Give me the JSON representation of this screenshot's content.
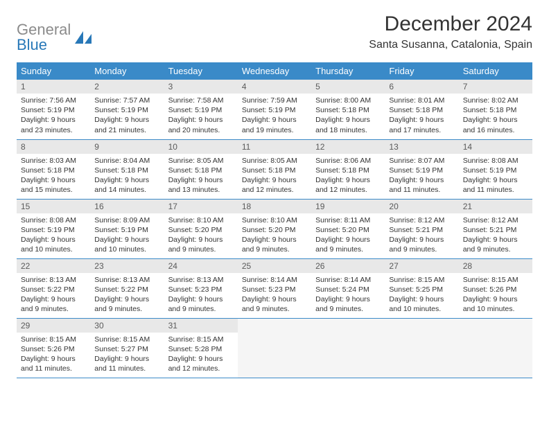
{
  "logo": {
    "text_gray": "General",
    "text_blue": "Blue",
    "shape_color": "#2878b8"
  },
  "title": "December 2024",
  "location": "Santa Susanna, Catalonia, Spain",
  "colors": {
    "header_bg": "#3a8ac8",
    "header_text": "#ffffff",
    "daynum_bg": "#e8e8e8",
    "daynum_text": "#5a5a5a",
    "body_text": "#333333",
    "rule": "#3a8ac8",
    "empty_bg": "#f5f5f5"
  },
  "weekdays": [
    "Sunday",
    "Monday",
    "Tuesday",
    "Wednesday",
    "Thursday",
    "Friday",
    "Saturday"
  ],
  "weeks": [
    [
      {
        "n": "1",
        "sr": "7:56 AM",
        "ss": "5:19 PM",
        "dl": "9 hours and 23 minutes."
      },
      {
        "n": "2",
        "sr": "7:57 AM",
        "ss": "5:19 PM",
        "dl": "9 hours and 21 minutes."
      },
      {
        "n": "3",
        "sr": "7:58 AM",
        "ss": "5:19 PM",
        "dl": "9 hours and 20 minutes."
      },
      {
        "n": "4",
        "sr": "7:59 AM",
        "ss": "5:19 PM",
        "dl": "9 hours and 19 minutes."
      },
      {
        "n": "5",
        "sr": "8:00 AM",
        "ss": "5:18 PM",
        "dl": "9 hours and 18 minutes."
      },
      {
        "n": "6",
        "sr": "8:01 AM",
        "ss": "5:18 PM",
        "dl": "9 hours and 17 minutes."
      },
      {
        "n": "7",
        "sr": "8:02 AM",
        "ss": "5:18 PM",
        "dl": "9 hours and 16 minutes."
      }
    ],
    [
      {
        "n": "8",
        "sr": "8:03 AM",
        "ss": "5:18 PM",
        "dl": "9 hours and 15 minutes."
      },
      {
        "n": "9",
        "sr": "8:04 AM",
        "ss": "5:18 PM",
        "dl": "9 hours and 14 minutes."
      },
      {
        "n": "10",
        "sr": "8:05 AM",
        "ss": "5:18 PM",
        "dl": "9 hours and 13 minutes."
      },
      {
        "n": "11",
        "sr": "8:05 AM",
        "ss": "5:18 PM",
        "dl": "9 hours and 12 minutes."
      },
      {
        "n": "12",
        "sr": "8:06 AM",
        "ss": "5:18 PM",
        "dl": "9 hours and 12 minutes."
      },
      {
        "n": "13",
        "sr": "8:07 AM",
        "ss": "5:19 PM",
        "dl": "9 hours and 11 minutes."
      },
      {
        "n": "14",
        "sr": "8:08 AM",
        "ss": "5:19 PM",
        "dl": "9 hours and 11 minutes."
      }
    ],
    [
      {
        "n": "15",
        "sr": "8:08 AM",
        "ss": "5:19 PM",
        "dl": "9 hours and 10 minutes."
      },
      {
        "n": "16",
        "sr": "8:09 AM",
        "ss": "5:19 PM",
        "dl": "9 hours and 10 minutes."
      },
      {
        "n": "17",
        "sr": "8:10 AM",
        "ss": "5:20 PM",
        "dl": "9 hours and 9 minutes."
      },
      {
        "n": "18",
        "sr": "8:10 AM",
        "ss": "5:20 PM",
        "dl": "9 hours and 9 minutes."
      },
      {
        "n": "19",
        "sr": "8:11 AM",
        "ss": "5:20 PM",
        "dl": "9 hours and 9 minutes."
      },
      {
        "n": "20",
        "sr": "8:12 AM",
        "ss": "5:21 PM",
        "dl": "9 hours and 9 minutes."
      },
      {
        "n": "21",
        "sr": "8:12 AM",
        "ss": "5:21 PM",
        "dl": "9 hours and 9 minutes."
      }
    ],
    [
      {
        "n": "22",
        "sr": "8:13 AM",
        "ss": "5:22 PM",
        "dl": "9 hours and 9 minutes."
      },
      {
        "n": "23",
        "sr": "8:13 AM",
        "ss": "5:22 PM",
        "dl": "9 hours and 9 minutes."
      },
      {
        "n": "24",
        "sr": "8:13 AM",
        "ss": "5:23 PM",
        "dl": "9 hours and 9 minutes."
      },
      {
        "n": "25",
        "sr": "8:14 AM",
        "ss": "5:23 PM",
        "dl": "9 hours and 9 minutes."
      },
      {
        "n": "26",
        "sr": "8:14 AM",
        "ss": "5:24 PM",
        "dl": "9 hours and 9 minutes."
      },
      {
        "n": "27",
        "sr": "8:15 AM",
        "ss": "5:25 PM",
        "dl": "9 hours and 10 minutes."
      },
      {
        "n": "28",
        "sr": "8:15 AM",
        "ss": "5:26 PM",
        "dl": "9 hours and 10 minutes."
      }
    ],
    [
      {
        "n": "29",
        "sr": "8:15 AM",
        "ss": "5:26 PM",
        "dl": "9 hours and 11 minutes."
      },
      {
        "n": "30",
        "sr": "8:15 AM",
        "ss": "5:27 PM",
        "dl": "9 hours and 11 minutes."
      },
      {
        "n": "31",
        "sr": "8:15 AM",
        "ss": "5:28 PM",
        "dl": "9 hours and 12 minutes."
      },
      null,
      null,
      null,
      null
    ]
  ],
  "labels": {
    "sunrise": "Sunrise:",
    "sunset": "Sunset:",
    "daylight": "Daylight:"
  }
}
